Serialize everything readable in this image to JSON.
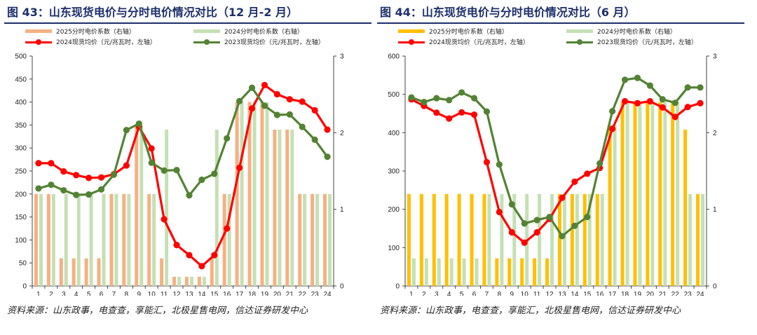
{
  "charts": [
    {
      "title": "图 43：山东现货电价与分时电价情况对比（12 月-2 月）",
      "source": "资料来源：山东政事，电查查，享能汇，北极星售电网，信达证券研发中心",
      "legend": {
        "bar1": "2025分时电价系数（右轴）",
        "bar2": "2024分时电价系数（右轴）",
        "line1": "2024现货均价（元/兆瓦时，左轴）",
        "line2": "2023现货均价（元/兆瓦时，左轴）"
      },
      "colors": {
        "bar1": "#f4b183",
        "bar2": "#c5e0b4",
        "line1": "#ff0000",
        "line2": "#548235"
      },
      "chart_data": {
        "type": "bar+line",
        "categories": [
          "1",
          "2",
          "3",
          "4",
          "5",
          "6",
          "7",
          "8",
          "9",
          "10",
          "11",
          "12",
          "13",
          "14",
          "15",
          "16",
          "17",
          "18",
          "19",
          "20",
          "21",
          "22",
          "23",
          "24"
        ],
        "left_axis": {
          "ylim": [
            0,
            500
          ],
          "ticks": [
            0,
            50,
            100,
            150,
            200,
            250,
            300,
            350,
            400,
            450,
            500
          ]
        },
        "right_axis": {
          "ylim": [
            0,
            3
          ],
          "ticks": [
            0,
            1,
            2,
            3
          ]
        },
        "series": [
          {
            "name": "2025分时电价系数（右轴）",
            "kind": "bar",
            "axis": "right",
            "values": [
              1.2,
              1.2,
              0.36,
              0.36,
              0.36,
              0.36,
              1.2,
              1.2,
              2.1,
              1.2,
              0.36,
              0.12,
              0.12,
              0.12,
              0.36,
              1.2,
              2.4,
              2.4,
              2.4,
              2.04,
              2.04,
              1.2,
              1.2,
              1.2
            ]
          },
          {
            "name": "2024分时电价系数（右轴）",
            "kind": "bar",
            "axis": "right",
            "values": [
              1.2,
              1.2,
              1.2,
              1.2,
              1.2,
              1.2,
              1.2,
              1.2,
              2.1,
              1.2,
              2.04,
              0.12,
              0.12,
              0.12,
              2.04,
              1.2,
              2.4,
              2.4,
              2.4,
              2.04,
              2.04,
              1.2,
              1.2,
              1.2
            ]
          },
          {
            "name": "2024现货均价（元/兆瓦时，左轴）",
            "kind": "line",
            "axis": "left",
            "values": [
              267,
              267,
              249,
              241,
              235,
              236,
              243,
              262,
              346,
              299,
              145,
              89,
              67,
              43,
              67,
              125,
              257,
              386,
              437,
              417,
              406,
              401,
              382,
              340
            ]
          },
          {
            "name": "2023现货均价（元/兆瓦时，左轴）",
            "kind": "line",
            "axis": "left",
            "values": [
              212,
              220,
              208,
              198,
              199,
              210,
              242,
              339,
              353,
              268,
              251,
              252,
              197,
              231,
              244,
              321,
              402,
              431,
              392,
              372,
              373,
              346,
              318,
              281
            ]
          }
        ]
      }
    },
    {
      "title": "图 44：山东现货电价与分时电价情况对比（6 月）",
      "source": "资料来源：山东政事，电查查，享能汇，北极星售电网，信达证券研发中心",
      "legend": {
        "bar1": "2025分时电价系数（右轴）",
        "bar2": "2024分时电价系数（右轴）",
        "line1": "2024现货均价（元/兆瓦时，左轴）",
        "line2": "2023现货均价（元/兆瓦时，左轴）"
      },
      "colors": {
        "bar1": "#ffc000",
        "bar2": "#c5e0b4",
        "line1": "#ff0000",
        "line2": "#548235"
      },
      "chart_data": {
        "type": "bar+line",
        "categories": [
          "1",
          "2",
          "3",
          "4",
          "5",
          "6",
          "7",
          "8",
          "9",
          "10",
          "11",
          "12",
          "13",
          "14",
          "15",
          "16",
          "17",
          "18",
          "19",
          "20",
          "21",
          "22",
          "23",
          "24"
        ],
        "left_axis": {
          "ylim": [
            0,
            600
          ],
          "ticks": [
            0,
            100,
            200,
            300,
            400,
            500,
            600
          ]
        },
        "right_axis": {
          "ylim": [
            0,
            3
          ],
          "ticks": [
            0,
            1,
            2,
            3
          ]
        },
        "series": [
          {
            "name": "2025分时电价系数（右轴）",
            "kind": "bar",
            "axis": "right",
            "values": [
              1.2,
              1.2,
              1.2,
              1.2,
              1.2,
              1.2,
              1.2,
              0.36,
              0.36,
              0.36,
              0.36,
              0.36,
              1.2,
              1.2,
              1.2,
              1.2,
              2.1,
              2.4,
              2.4,
              2.4,
              2.4,
              2.4,
              2.04,
              1.2
            ]
          },
          {
            "name": "2024分时电价系数（右轴）",
            "kind": "bar",
            "axis": "right",
            "values": [
              0.36,
              0.36,
              0.36,
              0.36,
              0.36,
              0.36,
              1.2,
              1.2,
              1.2,
              1.2,
              1.2,
              1.2,
              1.2,
              1.2,
              1.2,
              1.2,
              2.1,
              2.4,
              2.4,
              2.4,
              2.4,
              2.4,
              1.2,
              1.2
            ]
          },
          {
            "name": "2024现货均价（元/兆瓦时，左轴）",
            "kind": "line",
            "axis": "left",
            "values": [
              487,
              470,
              452,
              437,
              453,
              447,
              323,
              193,
              140,
              113,
              140,
              175,
              230,
              272,
              293,
              308,
              410,
              482,
              477,
              482,
              466,
              441,
              467,
              477
            ]
          },
          {
            "name": "2023现货均价（元/兆瓦时，左轴）",
            "kind": "line",
            "axis": "left",
            "values": [
              492,
              480,
              490,
              485,
              505,
              490,
              455,
              317,
              213,
              163,
              172,
              180,
              130,
              157,
              180,
              320,
              456,
              538,
              543,
              523,
              487,
              478,
              518,
              518
            ]
          }
        ]
      }
    }
  ]
}
